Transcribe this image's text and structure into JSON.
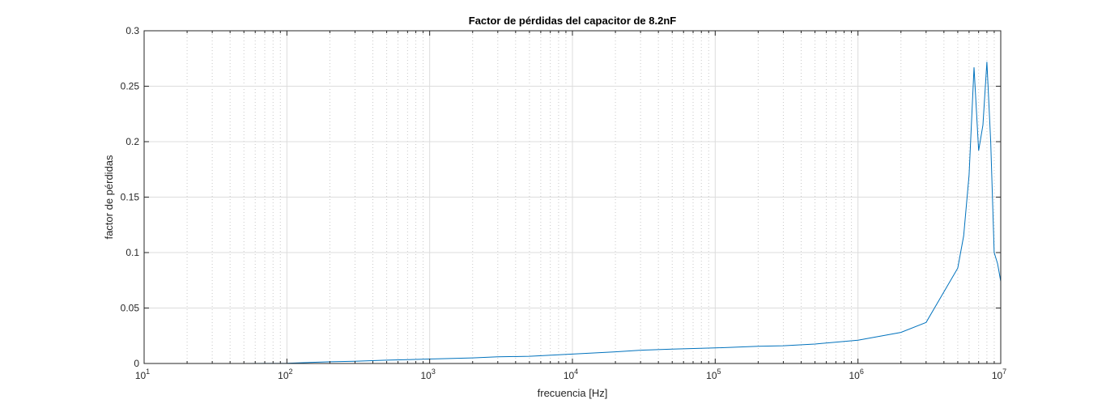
{
  "chart_data": {
    "type": "line",
    "title": "Factor de pérdidas del capacitor de 8.2nF",
    "xlabel": "frecuencia [Hz]",
    "ylabel": "factor de pérdidas",
    "xscale": "log",
    "xlim": [
      10,
      10000000
    ],
    "ylim": [
      0,
      0.3
    ],
    "grid": true,
    "minor_grid_x": true,
    "x_ticks": [
      {
        "value": 10,
        "base": "10",
        "exp": "1"
      },
      {
        "value": 100,
        "base": "10",
        "exp": "2"
      },
      {
        "value": 1000,
        "base": "10",
        "exp": "3"
      },
      {
        "value": 10000,
        "base": "10",
        "exp": "4"
      },
      {
        "value": 100000,
        "base": "10",
        "exp": "5"
      },
      {
        "value": 1000000,
        "base": "10",
        "exp": "6"
      },
      {
        "value": 10000000,
        "base": "10",
        "exp": "7"
      }
    ],
    "y_ticks": [
      {
        "value": 0,
        "label": "0"
      },
      {
        "value": 0.05,
        "label": "0.05"
      },
      {
        "value": 0.1,
        "label": "0.1"
      },
      {
        "value": 0.15,
        "label": "0.15"
      },
      {
        "value": 0.2,
        "label": "0.2"
      },
      {
        "value": 0.25,
        "label": "0.25"
      },
      {
        "value": 0.3,
        "label": "0.3"
      }
    ],
    "series": [
      {
        "color": "#0072bd",
        "x": [
          50,
          100,
          150,
          200,
          300,
          500,
          1000,
          2000,
          3000,
          5000,
          10000,
          20000,
          30000,
          50000,
          100000,
          200000,
          300000,
          500000,
          1000000,
          2000000,
          3000000,
          5000000,
          5500000,
          6000000,
          6500000,
          7000000,
          7500000,
          8000000,
          8500000,
          9000000,
          9500000,
          10000000
        ],
        "y": [
          0.0,
          0.0002,
          0.001,
          0.0015,
          0.002,
          0.003,
          0.004,
          0.005,
          0.006,
          0.0065,
          0.0085,
          0.0105,
          0.012,
          0.013,
          0.014,
          0.0155,
          0.016,
          0.0175,
          0.021,
          0.028,
          0.037,
          0.086,
          0.115,
          0.17,
          0.267,
          0.192,
          0.215,
          0.272,
          0.2,
          0.1,
          0.09,
          0.074
        ]
      }
    ]
  }
}
